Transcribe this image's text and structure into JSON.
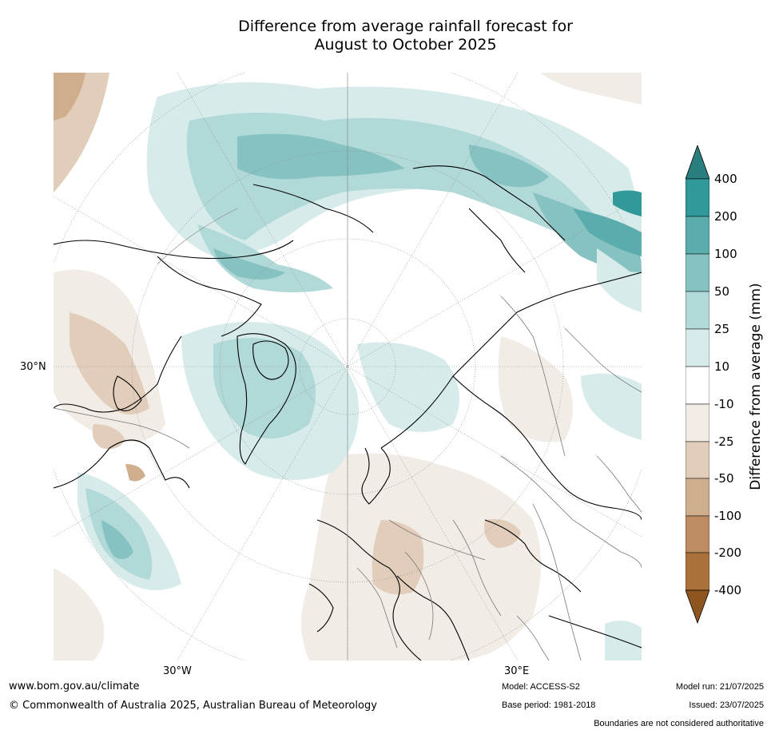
{
  "title": {
    "line1": "Difference from average rainfall forecast for",
    "line2": "August to October 2025"
  },
  "map": {
    "projection": "north-polar-stereographic",
    "labels": {
      "lat_30n": "30°N",
      "lon_30w": "30°W",
      "lon_30e": "30°E"
    }
  },
  "colorbar": {
    "axis_title": "Difference from average (mm)",
    "ticks": [
      "400",
      "200",
      "100",
      "50",
      "25",
      "10",
      "-10",
      "-25",
      "-50",
      "-100",
      "-200",
      "-400"
    ],
    "colors": [
      "#2b7e7e",
      "#31999a",
      "#5aacad",
      "#86c2c1",
      "#b0d9d8",
      "#d7ecea",
      "#ffffff",
      "#f2ece6",
      "#e2cdbb",
      "#cfae8e",
      "#bd8c62",
      "#ab713a",
      "#8e5520"
    ]
  },
  "footer": {
    "website": "www.bom.gov.au/climate",
    "copyright": "© Commonwealth of Australia 2025, Australian Bureau of Meteorology",
    "model": "Model: ACCESS-S2",
    "base_period": "Base period: 1981-2018",
    "model_run": "Model run: 21/07/2025",
    "issued": "Issued: 23/07/2025",
    "disclaimer": "Boundaries are not considered authoritative"
  }
}
